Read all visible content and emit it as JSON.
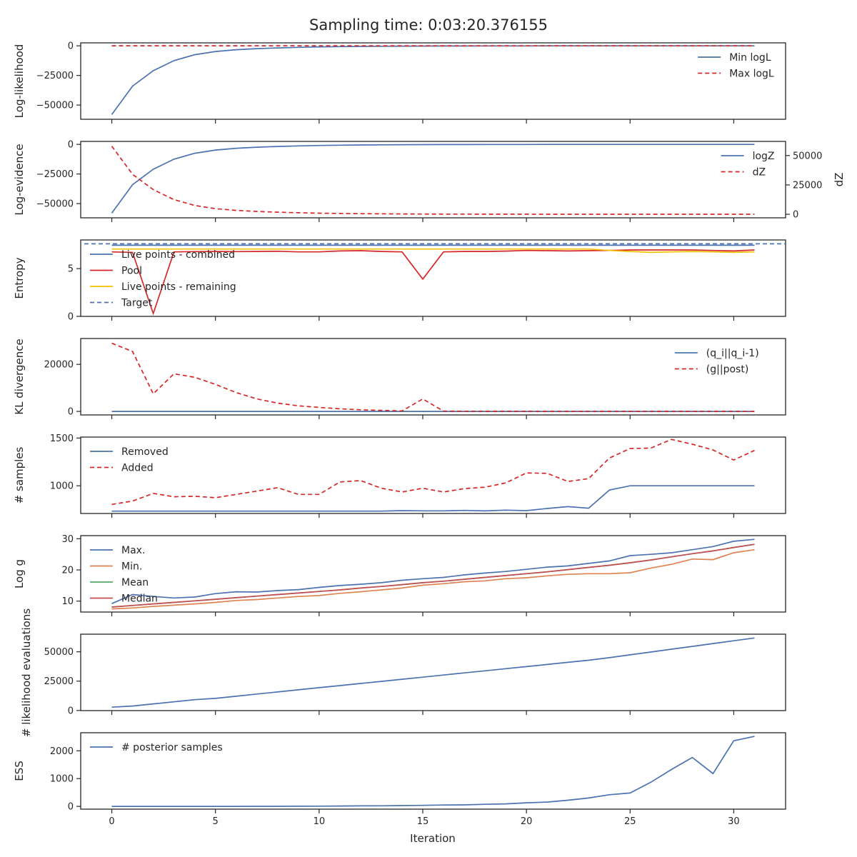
{
  "title": "Sampling time: 0:03:20.376155",
  "xlabel": "Iteration",
  "x_ticks": [
    0,
    5,
    10,
    15,
    20,
    25,
    30
  ],
  "chart_data": [
    {
      "type": "line",
      "ylabel": "Log-likelihood",
      "ylim": [
        -62000,
        2500
      ],
      "y_ticks": [
        {
          "v": 0,
          "label": "0"
        },
        {
          "v": -25000,
          "label": "−25000"
        },
        {
          "v": -50000,
          "label": "−50000"
        }
      ],
      "legend": {
        "position": "upper-right",
        "entries": [
          0,
          1
        ]
      },
      "series": [
        {
          "name": "Min logL",
          "color": "#4c72b0",
          "dash": false,
          "values": [
            -58000,
            -34000,
            -21000,
            -12500,
            -7500,
            -4800,
            -3300,
            -2400,
            -1800,
            -1300,
            -950,
            -700,
            -530,
            -400,
            -300,
            -230,
            -180,
            -140,
            -110,
            -90,
            -70,
            -55,
            -45,
            -35,
            -30,
            -25,
            -20,
            -17,
            -14,
            -12,
            -10,
            -8
          ]
        },
        {
          "name": "Max logL",
          "color": "#d62728",
          "dash": true,
          "values": [
            0,
            0,
            0,
            0,
            0,
            0,
            0,
            0,
            0,
            0,
            0,
            0,
            0,
            0,
            0,
            0,
            0,
            0,
            0,
            0,
            0,
            0,
            0,
            0,
            0,
            0,
            0,
            0,
            0,
            0,
            0,
            0
          ]
        }
      ]
    },
    {
      "type": "line",
      "ylabel": "Log-evidence",
      "ylabel_right": "dZ",
      "ylim": [
        -62000,
        2500
      ],
      "ylim_right": [
        -3000,
        62000
      ],
      "y_ticks": [
        {
          "v": 0,
          "label": "0"
        },
        {
          "v": -25000,
          "label": "−25000"
        },
        {
          "v": -50000,
          "label": "−50000"
        }
      ],
      "y_ticks_right": [
        {
          "v": 0,
          "label": "0"
        },
        {
          "v": 25000,
          "label": "25000"
        },
        {
          "v": 50000,
          "label": "50000"
        }
      ],
      "legend": {
        "position": "upper-right",
        "entries": [
          0,
          1
        ]
      },
      "series": [
        {
          "name": "logZ",
          "color": "#4c72b0",
          "dash": false,
          "axis": "left",
          "values": [
            -58000,
            -34000,
            -21000,
            -12500,
            -7500,
            -4800,
            -3300,
            -2400,
            -1800,
            -1300,
            -950,
            -700,
            -530,
            -400,
            -300,
            -230,
            -180,
            -140,
            -110,
            -90,
            -70,
            -55,
            -45,
            -35,
            -30,
            -25,
            -20,
            -17,
            -14,
            -12,
            -10,
            -8
          ]
        },
        {
          "name": "dZ",
          "color": "#d62728",
          "dash": true,
          "axis": "right",
          "values": [
            58000,
            34000,
            21000,
            12500,
            7500,
            4800,
            3300,
            2400,
            1800,
            1300,
            950,
            700,
            530,
            400,
            300,
            230,
            180,
            140,
            110,
            90,
            70,
            55,
            45,
            35,
            30,
            25,
            20,
            17,
            14,
            12,
            10,
            8
          ]
        }
      ]
    },
    {
      "type": "line",
      "ylabel": "Entropy",
      "ylim": [
        0,
        8.0
      ],
      "y_ticks": [
        {
          "v": 0,
          "label": "0"
        },
        {
          "v": 5,
          "label": "5"
        }
      ],
      "legend": {
        "position": "upper-left",
        "entries": [
          0,
          1,
          2,
          3
        ]
      },
      "series": [
        {
          "name": "Live points - combined",
          "color": "#4c72b0",
          "dash": false,
          "values": [
            7.45,
            7.45,
            7.45,
            7.45,
            7.45,
            7.45,
            7.45,
            7.45,
            7.45,
            7.45,
            7.45,
            7.45,
            7.45,
            7.45,
            7.45,
            7.45,
            7.45,
            7.45,
            7.45,
            7.45,
            7.45,
            7.45,
            7.45,
            7.45,
            7.45,
            7.45,
            7.45,
            7.45,
            7.45,
            7.45,
            7.45,
            7.45
          ]
        },
        {
          "name": "Pool",
          "color": "#d62728",
          "dash": false,
          "values": [
            6.75,
            6.7,
            0.3,
            6.75,
            6.78,
            6.8,
            6.78,
            6.8,
            6.82,
            6.75,
            6.75,
            6.85,
            6.88,
            6.8,
            6.75,
            3.9,
            6.75,
            6.8,
            6.8,
            6.83,
            6.9,
            6.88,
            6.85,
            6.88,
            6.9,
            6.95,
            6.95,
            6.95,
            6.95,
            6.9,
            6.85,
            6.95
          ]
        },
        {
          "name": "Live points - remaining",
          "color": "#f2c100",
          "dash": false,
          "values": [
            7.05,
            7.05,
            7.05,
            7.05,
            7.05,
            7.05,
            7.05,
            7.05,
            7.05,
            7.05,
            7.05,
            7.05,
            7.05,
            7.05,
            7.05,
            7.05,
            7.05,
            7.05,
            7.05,
            7.05,
            7.05,
            7.05,
            7.05,
            7.05,
            6.9,
            6.8,
            6.7,
            6.75,
            6.8,
            6.75,
            6.7,
            6.75
          ]
        },
        {
          "name": "Target",
          "color": "#4c72b0",
          "dash": true,
          "hline": 7.6
        }
      ]
    },
    {
      "type": "line",
      "ylabel": "KL divergence",
      "ylim": [
        -1500,
        31000
      ],
      "y_ticks": [
        {
          "v": 0,
          "label": "0"
        },
        {
          "v": 20000,
          "label": "20000"
        }
      ],
      "legend": {
        "position": "upper-right",
        "entries": [
          0,
          1
        ]
      },
      "series": [
        {
          "name": "(q_i||q_i-1)",
          "color": "#4c72b0",
          "dash": false,
          "values": [
            0,
            0,
            0,
            0,
            0,
            0,
            0,
            0,
            0,
            0,
            0,
            0,
            0,
            0,
            0,
            0,
            0,
            0,
            0,
            0,
            0,
            0,
            0,
            0,
            0,
            0,
            0,
            0,
            0,
            0,
            0,
            0
          ]
        },
        {
          "name": "(g||post)",
          "color": "#d62728",
          "dash": true,
          "values": [
            29000,
            25500,
            7500,
            16000,
            14500,
            11500,
            8000,
            5300,
            3500,
            2400,
            1700,
            1100,
            700,
            450,
            200,
            5300,
            100,
            80,
            60,
            50,
            40,
            30,
            25,
            20,
            15,
            12,
            10,
            8,
            6,
            5,
            4,
            3
          ]
        }
      ]
    },
    {
      "type": "line",
      "ylabel": "# samples",
      "ylim": [
        710,
        1510
      ],
      "y_ticks": [
        {
          "v": 1000,
          "label": "1000"
        },
        {
          "v": 1500,
          "label": "1500"
        }
      ],
      "legend": {
        "position": "upper-left",
        "entries": [
          0,
          1
        ]
      },
      "series": [
        {
          "name": "Removed",
          "color": "#4c72b0",
          "dash": false,
          "values": [
            735,
            735,
            735,
            735,
            735,
            735,
            735,
            735,
            735,
            735,
            735,
            735,
            735,
            735,
            740,
            738,
            738,
            742,
            737,
            745,
            740,
            762,
            782,
            765,
            955,
            1000,
            1000,
            1000,
            1000,
            1000,
            1000,
            1000
          ]
        },
        {
          "name": "Added",
          "color": "#d62728",
          "dash": true,
          "values": [
            805,
            840,
            920,
            885,
            890,
            875,
            910,
            945,
            980,
            910,
            910,
            1040,
            1055,
            975,
            935,
            975,
            935,
            970,
            985,
            1030,
            1135,
            1130,
            1045,
            1075,
            1290,
            1390,
            1395,
            1485,
            1435,
            1375,
            1270,
            1370
          ]
        }
      ]
    },
    {
      "type": "line",
      "ylabel": "Log g",
      "ylim": [
        6.5,
        31
      ],
      "y_ticks": [
        {
          "v": 10,
          "label": "10"
        },
        {
          "v": 20,
          "label": "20"
        },
        {
          "v": 30,
          "label": "30"
        }
      ],
      "legend": {
        "position": "upper-left",
        "entries": [
          0,
          1,
          2,
          3
        ]
      },
      "series": [
        {
          "name": "Max.",
          "color": "#4c72b0",
          "dash": false,
          "values": [
            9.2,
            12.1,
            11.5,
            11.0,
            11.3,
            12.4,
            13.0,
            12.9,
            13.4,
            13.7,
            14.4,
            15.0,
            15.4,
            15.9,
            16.7,
            17.2,
            17.6,
            18.4,
            19.0,
            19.5,
            20.2,
            20.9,
            21.3,
            22.1,
            22.9,
            24.6,
            25.0,
            25.5,
            26.5,
            27.5,
            29.2,
            29.8
          ]
        },
        {
          "name": "Min.",
          "color": "#dd8452",
          "dash": false,
          "values": [
            7.5,
            7.8,
            8.3,
            8.7,
            9.1,
            9.6,
            10.2,
            10.5,
            11.0,
            11.5,
            11.8,
            12.5,
            13.0,
            13.6,
            14.2,
            15.1,
            15.6,
            16.2,
            16.5,
            17.2,
            17.5,
            18.1,
            18.6,
            18.8,
            18.8,
            19.1,
            20.6,
            21.8,
            23.5,
            23.3,
            25.5,
            26.5
          ]
        },
        {
          "name": "Mean",
          "color": "#55a868",
          "dash": false,
          "values": [
            8.1,
            8.6,
            9.1,
            9.6,
            10.1,
            10.6,
            11.1,
            11.6,
            12.1,
            12.6,
            13.1,
            13.6,
            14.2,
            14.7,
            15.3,
            15.9,
            16.4,
            17.0,
            17.6,
            18.2,
            18.8,
            19.4,
            20.1,
            20.8,
            21.5,
            22.3,
            23.2,
            24.2,
            25.2,
            26.1,
            27.2,
            28.2
          ]
        },
        {
          "name": "Median",
          "color": "#c44e52",
          "dash": false,
          "values": [
            8.1,
            8.6,
            9.1,
            9.6,
            10.1,
            10.6,
            11.1,
            11.6,
            12.1,
            12.6,
            13.1,
            13.6,
            14.2,
            14.7,
            15.3,
            15.9,
            16.4,
            17.0,
            17.6,
            18.2,
            18.8,
            19.4,
            20.1,
            20.8,
            21.5,
            22.3,
            23.2,
            24.2,
            25.2,
            26.1,
            27.2,
            28.2
          ]
        }
      ]
    },
    {
      "type": "line",
      "ylabel": "# likelihood evaluations",
      "ylim": [
        -100,
        65000
      ],
      "y_ticks": [
        {
          "v": 0,
          "label": "0"
        },
        {
          "v": 25000,
          "label": "25000"
        },
        {
          "v": 50000,
          "label": "50000"
        }
      ],
      "legend": null,
      "series": [
        {
          "name": "",
          "color": "#4c72b0",
          "dash": false,
          "values": [
            2800,
            3800,
            5600,
            7400,
            9200,
            10300,
            12100,
            14000,
            15800,
            17600,
            19400,
            21200,
            23000,
            24800,
            26600,
            28400,
            30200,
            32000,
            33800,
            35600,
            37400,
            39200,
            41000,
            42800,
            45000,
            47400,
            49800,
            52200,
            54600,
            57000,
            59400,
            61800
          ]
        }
      ]
    },
    {
      "type": "line",
      "ylabel": "ESS",
      "ylim": [
        -100,
        2650
      ],
      "y_ticks": [
        {
          "v": 0,
          "label": "0"
        },
        {
          "v": 1000,
          "label": "1000"
        },
        {
          "v": 2000,
          "label": "2000"
        }
      ],
      "legend": {
        "position": "upper-left",
        "entries": [
          0
        ]
      },
      "series": [
        {
          "name": "# posterior samples",
          "color": "#4c72b0",
          "dash": false,
          "values": [
            0,
            0,
            0,
            0,
            0,
            0,
            0,
            2,
            3,
            5,
            8,
            12,
            18,
            20,
            28,
            35,
            48,
            55,
            75,
            90,
            130,
            155,
            220,
            300,
            420,
            480,
            870,
            1330,
            1760,
            1180,
            2360,
            2520
          ]
        }
      ]
    }
  ]
}
